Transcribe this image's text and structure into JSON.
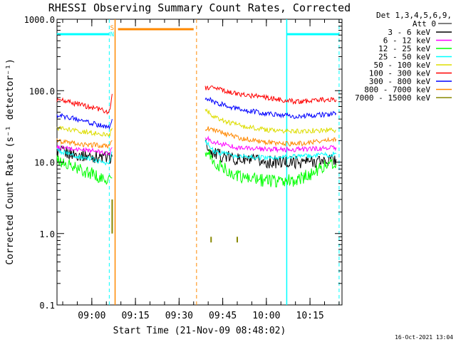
{
  "chart_data": {
    "type": "line",
    "title": "RHESSI Observing Summary Count Rates, Corrected",
    "xlabel": "Start Time (21-Nov-09 08:48:02)",
    "ylabel": "Corrected Count Rate (s⁻¹ detector⁻¹)",
    "y_scale": "log",
    "ylim": [
      0.1,
      1000
    ],
    "xlim": [
      "08:48:02",
      "10:26:00"
    ],
    "x_ticks": [
      "09:00",
      "09:15",
      "09:30",
      "09:45",
      "10:00",
      "10:15"
    ],
    "y_ticks": [
      "1000.0",
      "100.0",
      "10.0",
      "1.0",
      "0.1"
    ],
    "legend": {
      "position": "top-right",
      "header": [
        "Det 1,3,4,5,6,9,",
        "Att 0"
      ],
      "entries": [
        {
          "name": "3 - 6 keV",
          "color": "#000000"
        },
        {
          "name": "6 - 12 keV",
          "color": "#ff00ff"
        },
        {
          "name": "12 - 25 keV",
          "color": "#00ff00"
        },
        {
          "name": "25 - 50 keV",
          "color": "#00ffff"
        },
        {
          "name": "50 - 100 keV",
          "color": "#dddd00"
        },
        {
          "name": "100 - 300 keV",
          "color": "#ff0000"
        },
        {
          "name": "300 - 800 keV",
          "color": "#0000ff"
        },
        {
          "name": "800 - 7000 keV",
          "color": "#ff8800"
        },
        {
          "name": "7000 - 15000 keV",
          "color": "#888800"
        }
      ]
    },
    "series": [
      {
        "name": "3 - 6 keV",
        "color": "#000000",
        "segments": [
          [
            [
              "08:48",
              14
            ],
            [
              "09:00",
              12
            ],
            [
              "09:06",
              11.5
            ],
            [
              "09:07",
              12
            ]
          ],
          [
            [
              "09:39",
              18
            ],
            [
              "09:42",
              13
            ],
            [
              "09:50",
              11
            ],
            [
              "10:00",
              10
            ],
            [
              "10:10",
              10
            ],
            [
              "10:20",
              10.5
            ],
            [
              "10:24",
              11
            ]
          ]
        ]
      },
      {
        "name": "6 - 12 keV",
        "color": "#ff00ff",
        "segments": [
          [
            [
              "08:48",
              16
            ],
            [
              "09:00",
              14.5
            ],
            [
              "09:06",
              13
            ],
            [
              "09:07",
              16
            ]
          ],
          [
            [
              "09:39",
              22
            ],
            [
              "09:42",
              19
            ],
            [
              "09:50",
              16
            ],
            [
              "10:00",
              15
            ],
            [
              "10:10",
              15
            ],
            [
              "10:20",
              15.5
            ],
            [
              "10:24",
              16
            ]
          ]
        ]
      },
      {
        "name": "12 - 25 keV",
        "color": "#00ff00",
        "segments": [
          [
            [
              "08:48",
              10.5
            ],
            [
              "08:55",
              8
            ],
            [
              "09:00",
              7
            ],
            [
              "09:04",
              5.5
            ],
            [
              "09:07",
              6
            ]
          ],
          [
            [
              "09:39",
              15
            ],
            [
              "09:42",
              10
            ],
            [
              "09:47",
              7.5
            ],
            [
              "09:52",
              6
            ],
            [
              "10:00",
              5.5
            ],
            [
              "10:10",
              5.5
            ],
            [
              "10:16",
              7
            ],
            [
              "10:20",
              9
            ],
            [
              "10:24",
              9.5
            ]
          ]
        ]
      },
      {
        "name": "25 - 50 keV",
        "color": "#00ffff",
        "segments": [
          [
            [
              "08:48",
              14.5
            ],
            [
              "08:55",
              12
            ],
            [
              "09:00",
              11
            ],
            [
              "09:06",
              9.5
            ],
            [
              "09:07",
              14
            ]
          ],
          [
            [
              "09:39",
              20
            ],
            [
              "09:42",
              14
            ],
            [
              "09:50",
              12
            ],
            [
              "10:00",
              11.5
            ],
            [
              "10:10",
              12
            ],
            [
              "10:20",
              12.5
            ],
            [
              "10:24",
              13
            ]
          ]
        ]
      },
      {
        "name": "50 - 100 keV",
        "color": "#dddd00",
        "segments": [
          [
            [
              "08:48",
              30
            ],
            [
              "08:55",
              27
            ],
            [
              "09:00",
              26
            ],
            [
              "09:06",
              24
            ],
            [
              "09:07",
              30
            ]
          ],
          [
            [
              "09:39",
              55
            ],
            [
              "09:42",
              42
            ],
            [
              "09:50",
              33
            ],
            [
              "10:00",
              28
            ],
            [
              "10:10",
              27
            ],
            [
              "10:20",
              28
            ],
            [
              "10:24",
              28
            ]
          ]
        ]
      },
      {
        "name": "100 - 300 keV",
        "color": "#ff0000",
        "segments": [
          [
            [
              "08:48",
              75
            ],
            [
              "08:55",
              65
            ],
            [
              "09:00",
              58
            ],
            [
              "09:06",
              50
            ],
            [
              "09:07",
              90
            ]
          ],
          [
            [
              "09:39",
              110
            ],
            [
              "09:42",
              110
            ],
            [
              "09:50",
              90
            ],
            [
              "10:00",
              80
            ],
            [
              "10:10",
              70
            ],
            [
              "10:20",
              75
            ],
            [
              "10:24",
              75
            ]
          ]
        ]
      },
      {
        "name": "300 - 800 keV",
        "color": "#0000ff",
        "segments": [
          [
            [
              "08:48",
              45
            ],
            [
              "08:55",
              40
            ],
            [
              "09:00",
              35
            ],
            [
              "09:06",
              30
            ],
            [
              "09:07",
              40
            ]
          ],
          [
            [
              "09:39",
              80
            ],
            [
              "09:42",
              70
            ],
            [
              "09:50",
              55
            ],
            [
              "10:00",
              48
            ],
            [
              "10:10",
              44
            ],
            [
              "10:20",
              46
            ],
            [
              "10:24",
              48
            ]
          ]
        ]
      },
      {
        "name": "800 - 7000 keV",
        "color": "#ff8800",
        "segments": [
          [
            [
              "08:48",
              20
            ],
            [
              "08:55",
              18
            ],
            [
              "09:00",
              17.5
            ],
            [
              "09:06",
              16.5
            ],
            [
              "09:07",
              20
            ]
          ],
          [
            [
              "09:39",
              30
            ],
            [
              "09:42",
              28
            ],
            [
              "09:50",
              22
            ],
            [
              "10:00",
              19
            ],
            [
              "10:10",
              18
            ],
            [
              "10:20",
              20
            ],
            [
              "10:24",
              21
            ]
          ]
        ]
      },
      {
        "name": "7000 - 15000 keV",
        "color": "#888800",
        "spikes": [
          [
            "09:07",
            1.0,
            3.0
          ],
          [
            "09:41",
            0.75,
            0.9
          ],
          [
            "09:50",
            0.75,
            0.9
          ]
        ]
      }
    ],
    "annotations": {
      "saa_bars": [
        [
          "08:48",
          "09:06"
        ],
        [
          "10:07",
          "10:25"
        ]
      ],
      "saa_line_color": "#00ffff",
      "night_bar": [
        "09:09",
        "09:35"
      ],
      "night_bar_color": "#ff8800",
      "markers": [
        "S",
        "N"
      ],
      "vertical_lines": [
        {
          "time": "09:06",
          "color": "#00ffff",
          "style": "dashed"
        },
        {
          "time": "09:08",
          "color": "#ff8800",
          "style": "solid"
        },
        {
          "time": "09:36",
          "color": "#ff8800",
          "style": "dashed"
        },
        {
          "time": "10:07",
          "color": "#00ffff",
          "style": "solid"
        },
        {
          "time": "10:25",
          "color": "#00ffff",
          "style": "dashed"
        }
      ]
    },
    "grid": false
  },
  "footer": {
    "timestamp": "16-Oct-2021 13:04"
  }
}
